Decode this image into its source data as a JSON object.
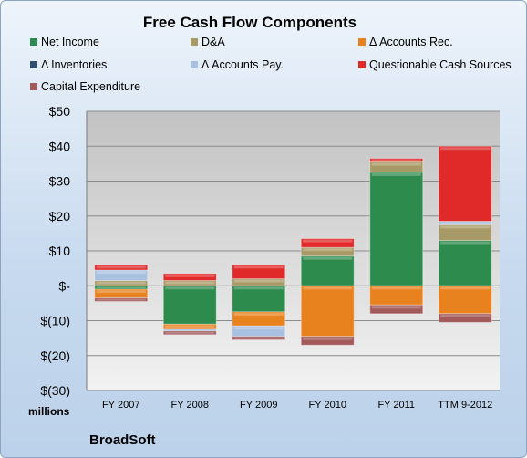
{
  "chart_data": {
    "type": "bar",
    "stacked": true,
    "title": "Free Cash Flow Components",
    "categories": [
      "FY 2007",
      "FY 2008",
      "FY 2009",
      "FY 2010",
      "FY 2011",
      "TTM 9-2012"
    ],
    "ylim": [
      -30,
      50
    ],
    "yticks": [
      "$50",
      "$40",
      "$30",
      "$20",
      "$10",
      "$-",
      "$(10)",
      "$(20)",
      "$(30)"
    ],
    "ytick_values": [
      50,
      40,
      30,
      20,
      10,
      0,
      -10,
      -20,
      -30
    ],
    "units_label": "millions",
    "legend_position": "top",
    "grid": true,
    "series": [
      {
        "name": "Net Income",
        "color": "#2e8b4e",
        "values": [
          -1.0,
          -11.0,
          -7.5,
          8.5,
          32.5,
          13.0
        ]
      },
      {
        "name": "D&A",
        "color": "#a89a66",
        "values": [
          1.5,
          1.5,
          2.0,
          2.5,
          3.0,
          4.5
        ]
      },
      {
        "name": "Δ Accounts Rec.",
        "color": "#e8821e",
        "values": [
          -2.5,
          -1.5,
          -4.0,
          -14.5,
          -5.5,
          -8.0
        ]
      },
      {
        "name": "Δ Inventories",
        "color": "#2d4e6e",
        "values": [
          0,
          0,
          0,
          0,
          0,
          0
        ]
      },
      {
        "name": "Δ Accounts Pay.",
        "color": "#a9c1e0",
        "values": [
          3.0,
          -0.5,
          -3.0,
          0,
          0,
          1.0
        ]
      },
      {
        "name": "Questionable Cash Sources",
        "color": "#e02a2a",
        "values": [
          1.5,
          2.0,
          4.0,
          2.5,
          1.0,
          21.5
        ]
      },
      {
        "name": "Capital Expenditure",
        "color": "#a35a5a",
        "values": [
          -1.0,
          -1.0,
          -1.0,
          -2.5,
          -2.5,
          -2.5
        ]
      }
    ]
  },
  "company": "BroadSoft"
}
